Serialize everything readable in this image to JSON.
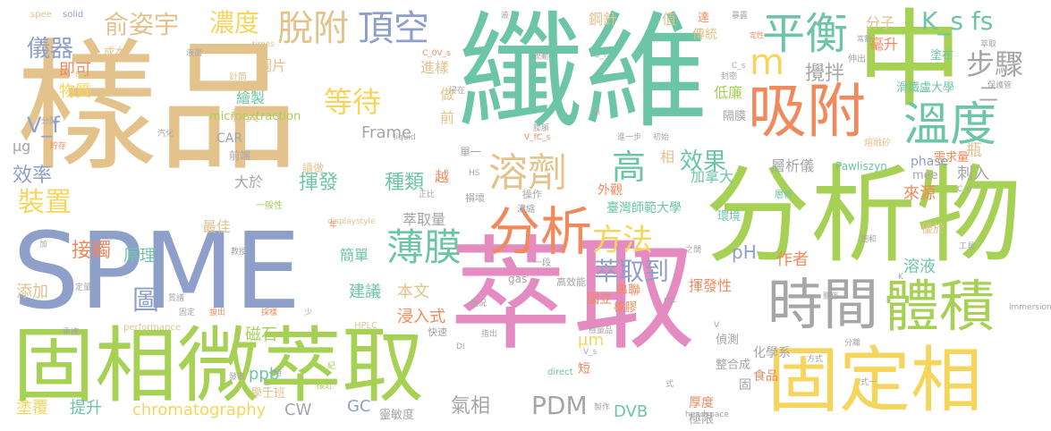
{
  "palette": {
    "tan": "#E3C28C",
    "teal": "#6CC5A6",
    "green": "#A7D154",
    "pink": "#E48BC2",
    "blue": "#8E9FCA",
    "orange": "#F08A5D",
    "gray": "#A6A6A6",
    "yellow": "#F6D55C"
  },
  "words": {
    "w_yangpin": "樣品",
    "w_xianwei": "纖維",
    "w_zhong": "中",
    "w_fenxiwu": "分析物",
    "w_spme": "SPME",
    "w_cuiqu_big": "萃取",
    "w_gxwcq": "固相微萃取",
    "w_gudingxiang": "固定相",
    "w_xifu": "吸附",
    "w_pingheng": "平衡",
    "w_wendu": "溫度",
    "w_shijian": "時間",
    "w_tiji": "體積",
    "w_fenxi": "分析",
    "w_rongji": "溶劑",
    "w_tuofu": "脫附",
    "w_dingkong": "頂空",
    "w_yiqi": "儀器",
    "w_yuzi": "俞姿宇",
    "w_nongdu": "濃度",
    "w_dengdai": "等待",
    "w_bozou": "步驟",
    "w_ks": "K_s fs",
    "w_m": "m",
    "w_jiaoban": "攪拌",
    "w_gao": "高",
    "w_zhuangzhi": "裝置",
    "w_xiaolu": "效率",
    "w_fangfa": "方法",
    "w_bomo": "薄膜",
    "w_cuiqudao": "萃取到",
    "w_pdm": "PDM",
    "w_xiaoguo": "效果",
    "w_chromatography": "chromatography",
    "w_jiechu": "接觸",
    "w_tu": "圖",
    "w_vf": "V_f",
    "w_fenzi": "分子",
    "w_haosheng": "毫升",
    "w_yiqi2": "儀器",
    "w_jinyang": "進樣",
    "w_huifa": "揮發",
    "w_zhonglei": "種類",
    "w_cuiqu_liang": "萃取量",
    "w_yuanli": "原理",
    "w_tianjia": "添加",
    "w_jianyi": "建議",
    "w_benwen": "本文",
    "w_jinrushi": "浸入式",
    "w_cishi": "磁石",
    "w_qixiang": "氣相",
    "w_ppb": "ppb",
    "w_gc": "GC",
    "w_cw": "CW",
    "w_dvb": "DVB",
    "w_tufu": "塗覆",
    "w_tisheng": "提升",
    "w_car": "CAR",
    "w_micro": "microextraction",
    "w_frame": "Frame",
    "w_ph": "pH",
    "w_zuozhe": "作者",
    "w_rongye": "溶液",
    "w_huifaxing": "揮發性",
    "w_laiyuan": "來源",
    "w_ciru": "刺入",
    "w_pawliszyn": "Pawliszyn",
    "w_xiangxiyi": "層析儀",
    "w_ping": "瓶",
    "w_phase": "phase",
    "w_mee": "mee",
    "w_xuqiu": "需求量",
    "w_dayu": "大於",
    "w_zuijia": "最佳",
    "w_jiandan": "簡單",
    "w_huizhi": "繪製",
    "w_caizhi": "材質",
    "w_tupian": "圖片",
    "w_wuzhi": "物質",
    "w_jike": "即可",
    "w_ug": "μg",
    "w_gangzhen": "鋼針",
    "w_zhi": "值",
    "w_jinsin": "針筒",
    "w_chengben": "成本",
    "w_da": "達",
    "w_chuantong": "傳統",
    "w_dilian": "低廉",
    "w_geimo": "隔膜",
    "w_huaxue": "滑鐵盧大學",
    "w_tubu": "塗布",
    "w_jianada": "加拿大",
    "w_taiwan": "臺灣師範大學",
    "w_huanjing": "環境",
    "w_youyu": "優於",
    "w_cuiqu_small": "萃取",
    "w_jian": "越",
    "w_gongju": "工具",
    "w_zuo": "做",
    "w_qian": "前",
    "w_xiang": "相",
    "w_waiguan": "外觀",
    "w_houdu": "厚度",
    "w_jixian": "極限",
    "w_shipin": "食品",
    "w_huaxuexi": "化學系",
    "w_zhenghecheng": "整合成",
    "w_gu": "固",
    "w_guolimian": "國立",
    "w_chuanlian": "串聯",
    "w_xiangpi": "橡膠",
    "w_um": "μm",
    "w_duan": "短",
    "w_zhenche": "偵測",
    "w_xuexue": "學士班",
    "w_lingmindu": "靈敏度",
    "w_qiying": "前端",
    "w_yiban": "一般性",
    "w_du": "讀做",
    "w_danyi": "單一",
    "w_gas": "gas",
    "w_gaoxiaoneng": "高效能",
    "w_hplc": "HPLC",
    "w_performance": "performance",
    "w_spee": "spee",
    "w_solid": "solid",
    "w_direct": "direct",
    "w_headspace": "headspace",
    "w_immersion": "immersion",
    "w_liquid": "liquid",
    "w_times": "times",
    "w_high": "high",
    "w_displaystyle": "displaystyle",
    "w_c0vs": "C_0V_s",
    "w_cf": "C_f",
    "w_cs": "C_s",
    "w_c0": "C_0",
    "w_vs": "V_s",
    "w_vfcs": "V_fC_s",
    "w_hs": "HS",
    "w_di": "DI",
    "w_ml": "mL",
    "w_k": "K",
    "w_v": "V",
    "w_rongjifeng": "熔融矽",
    "w_baohuce": "保護管",
    "w_baolu": "暴露",
    "w_dingxing": "定性",
    "w_shenchu": "伸出",
    "w_changshu": "常數",
    "w_fenpei": "分配",
    "w_zhucun": "貯存",
    "w_chongfu": "重複",
    "w_guding": "固定",
    "w_zhipu": "質譜",
    "w_bachu": "拔出",
    "w_caiyang": "採樣",
    "w_shao": "少",
    "w_jiaoshou": "教授",
    "w_nian": "年",
    "w_jia": "加",
    "w_fangshi": "方式",
    "w_sunhao": "損壞",
    "w_caozuo": "操作",
    "w_zhichu": "指出",
    "w_kuaisu": "快速",
    "w_jianceping": "檢量品",
    "w_zhizao": "製作",
    "w_shi": "式",
    "w_fenli": "分離",
    "w_qingkuang": "情況",
    "w_nongsuo": "濃縮",
    "w_zhengbi": "正比",
    "w_chuqi": "初始",
    "w_jinyibu": "進一步",
    "w_guanxi": "關係",
    "w_zhiyuan": "之間",
    "w_baoshu": "飽和",
    "w_erci": "二",
    "w_sanyi": "三",
    "w_shidu": "時",
    "w_luo": "落",
    "w_jiejin": "接近",
    "w_jiu": "紀",
    "w_qixiang2": "汽化",
    "w_dingliang": "定量",
    "w_ye": "液面",
    "w_peng": "膨脹",
    "w_fengmi": "封密",
    "w_zai": "浸在",
    "w_liudong": "流動",
    "w_re": "熱",
    "w_shiyan": "實驗",
    "w_tidu": "梯度",
    "w_kou": "口",
    "w_ce": "側",
    "w_zhu": "注",
    "w_dian": "點",
    "w_ti": "提",
    "w_shuru": "輸入",
    "w_fa": "發表",
    "w_zhi2": "值",
    "w_bian": "變",
    "w_cong": "從",
    "w_bi": "比",
    "w_yi": "以",
    "w_liang": "量",
    "w_xiangxi": "層析",
    "w_jiwei": "即為",
    "w_qi": "氣體",
    "w_zheng": "蒸",
    "w_tuo": "脫",
    "w_yiduan": "一段",
    "w_shiyi": "式一",
    "w_zongshu": "總數",
    "w_ye2": "液",
    "w_zhengqi": "蒸氣",
    "w_qiwen": "氣溫",
    "w_ri": "日"
  }
}
